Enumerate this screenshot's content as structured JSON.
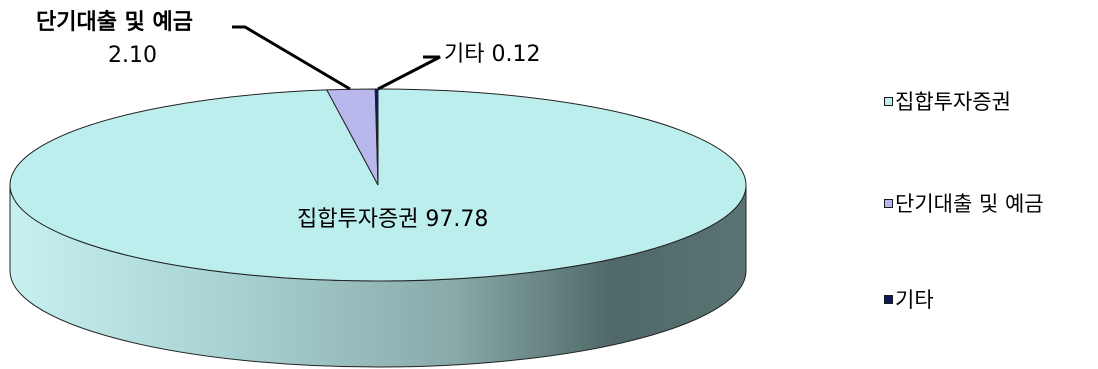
{
  "chart_data": {
    "type": "pie",
    "title": "",
    "slices": [
      {
        "name": "집합투자증권",
        "value": 97.78,
        "label": "집합투자증권 97.78",
        "color": "#bdeeee"
      },
      {
        "name": "단기대출 및 예금",
        "value": 2.1,
        "label_line1": "단기대출 및 예금",
        "label_line2": "2.10",
        "color": "#b8b8ec"
      },
      {
        "name": "기타",
        "value": 0.12,
        "label": "기타 0.12",
        "color": "#0a1a5a"
      }
    ],
    "legend": {
      "position": "right",
      "items": [
        "집합투자증권",
        "단기대출 및 예금",
        "기타"
      ]
    },
    "style": "3d-pie",
    "side_gradient": [
      "#c3eded",
      "#8fb3b3",
      "#4f6a6a"
    ]
  }
}
